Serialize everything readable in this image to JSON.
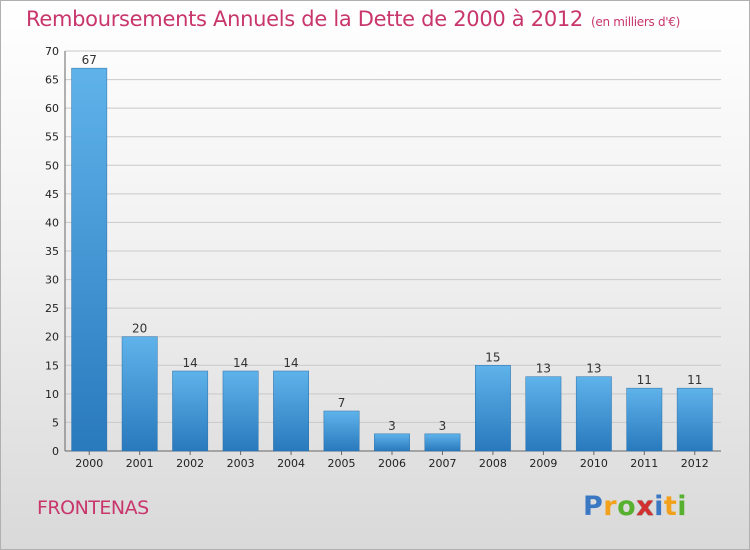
{
  "title": "Remboursements Annuels de la Dette de 2000 à 2012",
  "subtitle": "(en milliers d'€)",
  "commune": "FRONTENAS",
  "logo": {
    "letters": [
      "P",
      "r",
      "o",
      "x",
      "i",
      "t",
      "i"
    ],
    "colors": [
      "#3b78c4",
      "#f2a11d",
      "#58b030",
      "#d3302f",
      "#3b78c4",
      "#f2a11d",
      "#58b030"
    ]
  },
  "colors": {
    "title": "#c8366c",
    "bar_light": "#5fb3ea",
    "bar_dark": "#2979bd",
    "grid": "#c9c9c9"
  },
  "chart_data": {
    "type": "bar",
    "title": "Remboursements Annuels de la Dette de 2000 à 2012",
    "subtitle": "(en milliers d'€)",
    "xlabel": "",
    "ylabel": "",
    "categories": [
      "2000",
      "2001",
      "2002",
      "2003",
      "2004",
      "2005",
      "2006",
      "2007",
      "2008",
      "2009",
      "2010",
      "2011",
      "2012"
    ],
    "values": [
      67,
      20,
      14,
      14,
      14,
      7,
      3,
      3,
      15,
      13,
      13,
      11,
      11
    ],
    "ylim": [
      0,
      70
    ],
    "yticks": [
      0,
      5,
      10,
      15,
      20,
      25,
      30,
      35,
      40,
      45,
      50,
      55,
      60,
      65,
      70
    ],
    "grid": true,
    "data_labels": true
  }
}
